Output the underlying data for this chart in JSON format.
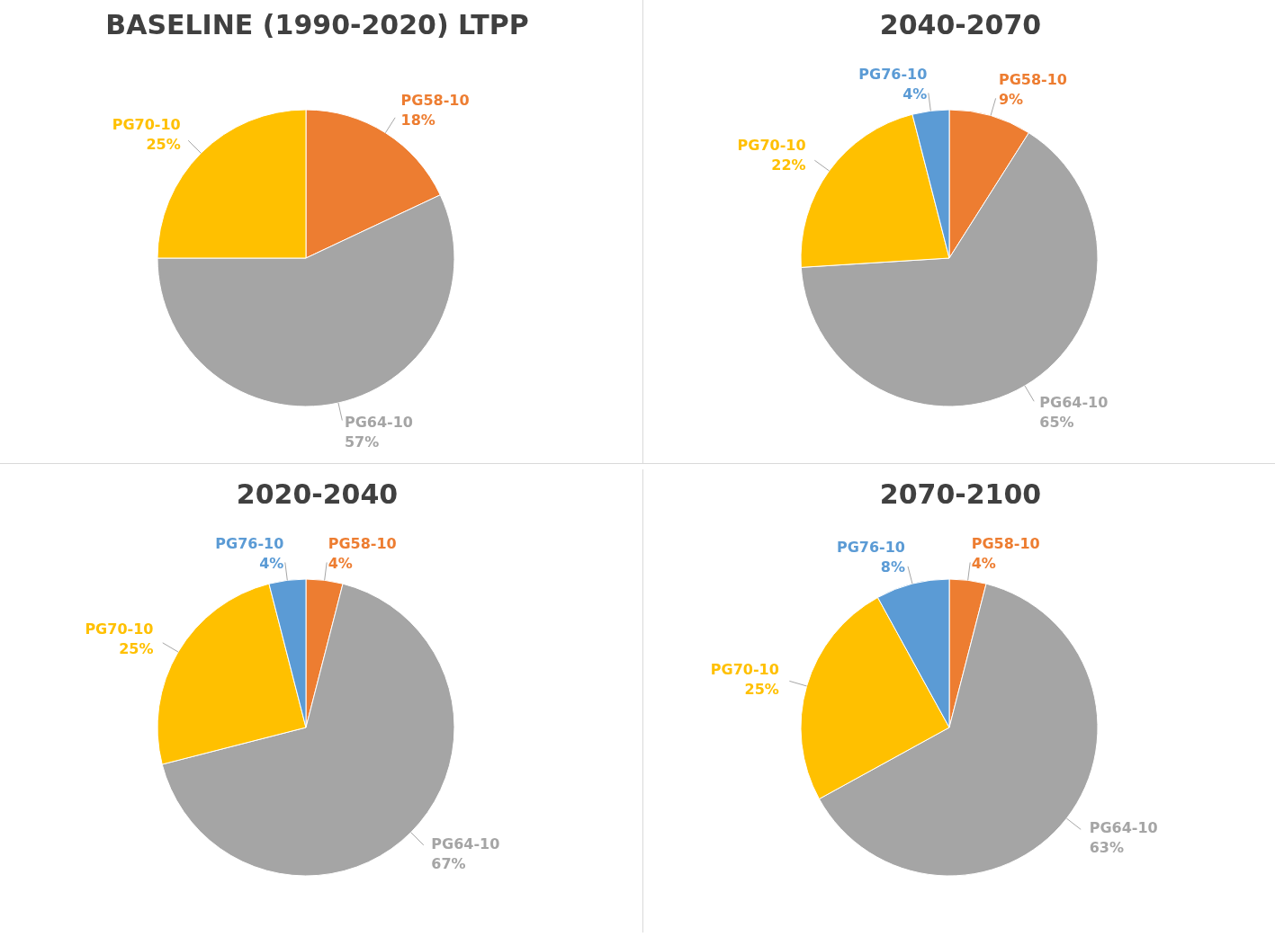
{
  "chart_data": [
    {
      "type": "pie",
      "title": "BASELINE (1990-2020) LTPP",
      "categories": [
        "PG58-10",
        "PG64-10",
        "PG70-10"
      ],
      "values": [
        18,
        57,
        25
      ],
      "value_labels": [
        "18%",
        "57%",
        "25%"
      ],
      "colors": [
        "#ed7d31",
        "#a5a5a5",
        "#ffc000"
      ]
    },
    {
      "type": "pie",
      "title": "2040-2070",
      "categories": [
        "PG58-10",
        "PG64-10",
        "PG70-10",
        "PG76-10"
      ],
      "values": [
        9,
        65,
        22,
        4
      ],
      "value_labels": [
        "9%",
        "65%",
        "22%",
        "4%"
      ],
      "colors": [
        "#ed7d31",
        "#a5a5a5",
        "#ffc000",
        "#5b9bd5"
      ]
    },
    {
      "type": "pie",
      "title": "2020-2040",
      "categories": [
        "PG58-10",
        "PG64-10",
        "PG70-10",
        "PG76-10"
      ],
      "values": [
        4,
        67,
        25,
        4
      ],
      "value_labels": [
        "4%",
        "67%",
        "25%",
        "4%"
      ],
      "colors": [
        "#ed7d31",
        "#a5a5a5",
        "#ffc000",
        "#5b9bd5"
      ]
    },
    {
      "type": "pie",
      "title": "2070-2100",
      "categories": [
        "PG58-10",
        "PG64-10",
        "PG70-10",
        "PG76-10"
      ],
      "values": [
        4,
        63,
        25,
        8
      ],
      "value_labels": [
        "4%",
        "63%",
        "25%",
        "8%"
      ],
      "colors": [
        "#ed7d31",
        "#a5a5a5",
        "#ffc000",
        "#5b9bd5"
      ]
    }
  ]
}
